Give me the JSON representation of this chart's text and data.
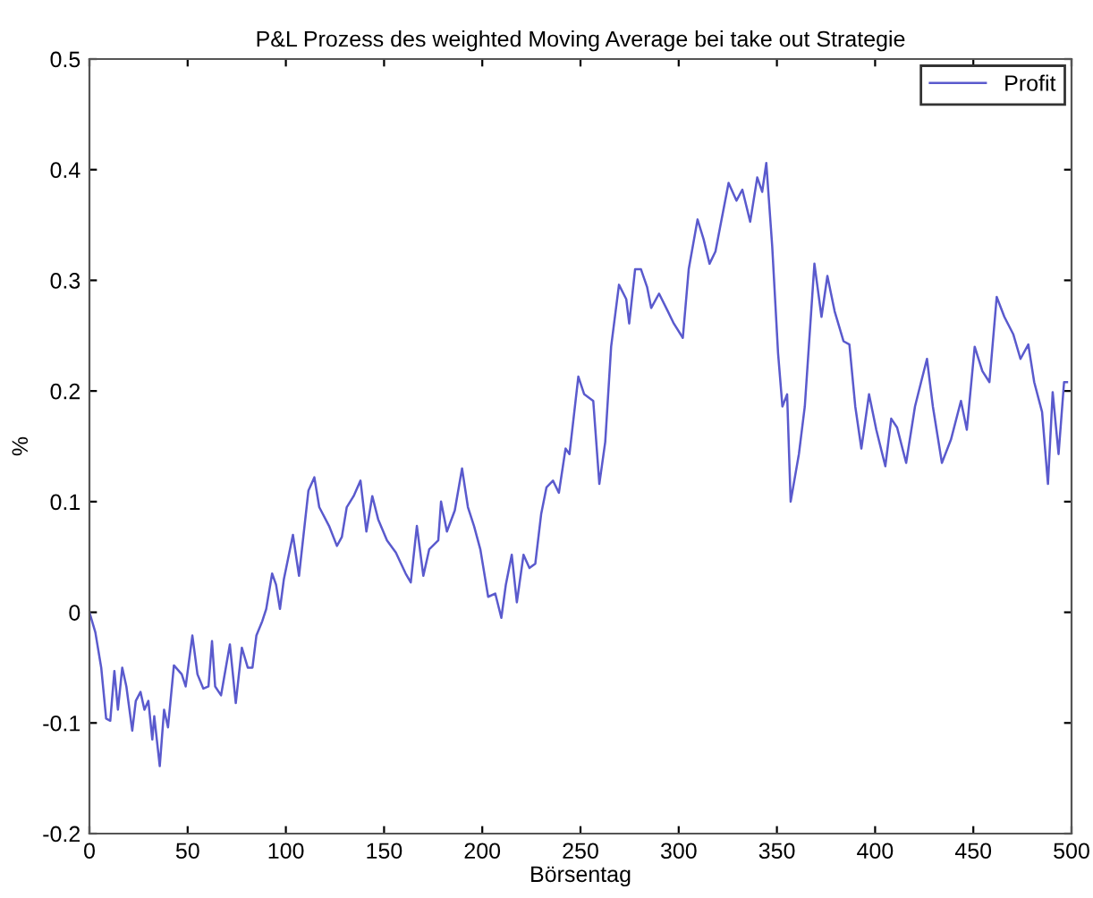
{
  "chart_data": {
    "type": "line",
    "title": "P&L Prozess des weighted Moving Average bei take out Strategie",
    "xlabel": "Börsentag",
    "ylabel": "%",
    "xlim": [
      0,
      500
    ],
    "xticks": [
      0,
      50,
      100,
      150,
      200,
      250,
      300,
      350,
      400,
      450,
      500
    ],
    "ylim": [
      -0.2,
      0.5
    ],
    "yticks": [
      -0.2,
      -0.1,
      0,
      0.1,
      0.2,
      0.3,
      0.4,
      0.5
    ],
    "grid": false,
    "legend": "top right",
    "marker": "none",
    "line_style": "solid",
    "series": [
      {
        "name": "Profit",
        "color": "#5a5acd",
        "x": [
          0,
          3,
          6,
          8.5,
          10.6,
          12.7,
          14.5,
          16.7,
          18.8,
          21.8,
          23.6,
          26,
          28,
          30,
          32,
          33,
          35.8,
          38,
          40,
          43,
          47,
          49,
          52.4,
          55,
          58,
          60.6,
          62.4,
          64,
          67,
          71.5,
          74.5,
          77.6,
          80.6,
          83,
          85,
          88,
          90,
          93,
          95,
          97,
          99,
          103.6,
          106.7,
          111.5,
          114.5,
          117,
          122,
          126,
          128.5,
          131,
          134.5,
          138,
          141,
          144,
          147,
          151.5,
          156,
          161,
          163.6,
          166.7,
          170,
          173,
          177.6,
          179,
          182,
          186,
          189.7,
          192.7,
          195.8,
          199,
          203,
          206.6,
          209.7,
          212,
          215,
          217.6,
          221,
          224,
          227,
          230,
          232.7,
          236,
          239,
          242.4,
          244.4,
          248.9,
          251.9,
          256.5,
          259.6,
          262.6,
          265.6,
          269.6,
          273.3,
          274.8,
          277.8,
          280.8,
          283.9,
          286,
          290,
          294.5,
          297.5,
          302.1,
          305.1,
          309.6,
          312.7,
          315.7,
          318.7,
          325.4,
          329.4,
          332.4,
          336.4,
          340,
          342.5,
          344.6,
          347.6,
          350.6,
          352.8,
          355.2,
          357,
          361.2,
          364.2,
          369.1,
          372.7,
          375.7,
          379.4,
          383.9,
          386.9,
          389.9,
          393,
          396.9,
          400.6,
          405.2,
          408.2,
          411.2,
          415.8,
          420.3,
          423.4,
          426.4,
          429.4,
          434,
          438.6,
          443.7,
          446.7,
          450.7,
          454.6,
          458.2,
          461.9,
          465.8,
          470.4,
          474,
          478,
          481,
          485,
          488,
          490.4,
          493.4,
          496.2,
          497.7
        ],
        "values": [
          0,
          -0.018,
          -0.05,
          -0.096,
          -0.098,
          -0.053,
          -0.088,
          -0.05,
          -0.067,
          -0.107,
          -0.08,
          -0.072,
          -0.088,
          -0.08,
          -0.115,
          -0.094,
          -0.139,
          -0.088,
          -0.104,
          -0.048,
          -0.056,
          -0.067,
          -0.021,
          -0.056,
          -0.069,
          -0.067,
          -0.026,
          -0.067,
          -0.075,
          -0.029,
          -0.082,
          -0.032,
          -0.05,
          -0.05,
          -0.021,
          -0.008,
          0.003,
          0.035,
          0.025,
          0.003,
          0.03,
          0.07,
          0.033,
          0.11,
          0.122,
          0.095,
          0.078,
          0.06,
          0.068,
          0.095,
          0.105,
          0.119,
          0.073,
          0.105,
          0.084,
          0.065,
          0.054,
          0.035,
          0.027,
          0.078,
          0.033,
          0.057,
          0.065,
          0.1,
          0.073,
          0.092,
          0.13,
          0.095,
          0.078,
          0.057,
          0.014,
          0.017,
          -0.005,
          0.025,
          0.052,
          0.009,
          0.052,
          0.04,
          0.044,
          0.089,
          0.113,
          0.119,
          0.108,
          0.148,
          0.143,
          0.213,
          0.197,
          0.191,
          0.116,
          0.154,
          0.24,
          0.296,
          0.283,
          0.261,
          0.31,
          0.31,
          0.294,
          0.275,
          0.288,
          0.272,
          0.261,
          0.248,
          0.31,
          0.355,
          0.337,
          0.315,
          0.326,
          0.388,
          0.372,
          0.382,
          0.353,
          0.393,
          0.38,
          0.406,
          0.331,
          0.234,
          0.186,
          0.197,
          0.1,
          0.143,
          0.186,
          0.315,
          0.267,
          0.304,
          0.272,
          0.245,
          0.242,
          0.186,
          0.148,
          0.197,
          0.165,
          0.132,
          0.175,
          0.167,
          0.135,
          0.186,
          0.208,
          0.229,
          0.186,
          0.135,
          0.156,
          0.191,
          0.165,
          0.24,
          0.218,
          0.208,
          0.285,
          0.267,
          0.251,
          0.229,
          0.242,
          0.208,
          0.181,
          0.116,
          0.199,
          0.143,
          0.208,
          0.208
        ]
      }
    ]
  }
}
